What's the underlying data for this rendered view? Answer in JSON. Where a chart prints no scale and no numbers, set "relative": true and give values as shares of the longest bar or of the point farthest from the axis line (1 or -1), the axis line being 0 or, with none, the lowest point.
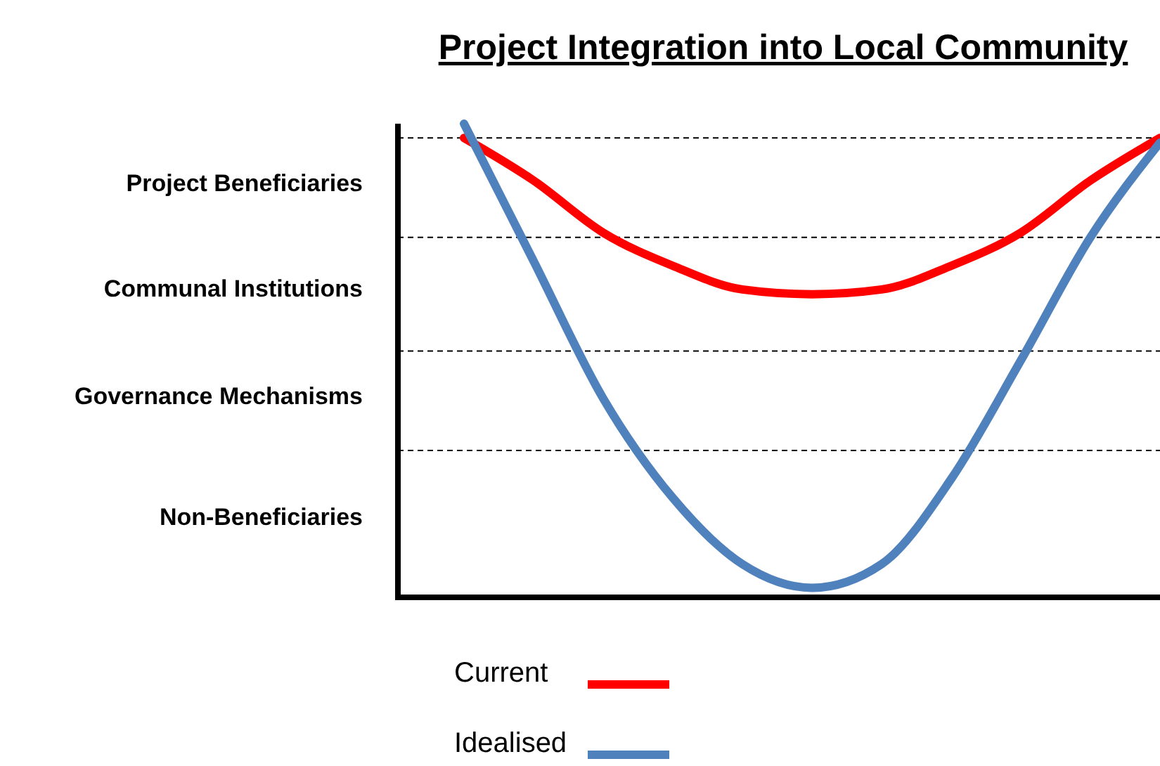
{
  "chart_data": {
    "type": "line",
    "title": "Project Integration into Local Community",
    "categories": [
      null,
      null,
      null,
      null,
      null,
      null,
      null,
      null,
      null,
      null,
      null
    ],
    "relative": true,
    "series": [
      {
        "name": "Current",
        "color": "#ff0000",
        "values": [
          0.97,
          0.88,
          0.77,
          0.7,
          0.65,
          0.64,
          0.65,
          0.7,
          0.77,
          0.88,
          0.97
        ]
      },
      {
        "name": "Idealised",
        "color": "#4f81bd",
        "values": [
          1.0,
          0.71,
          0.42,
          0.21,
          0.07,
          0.02,
          0.07,
          0.25,
          0.5,
          0.76,
          0.96
        ]
      }
    ],
    "ref_lines": [
      {
        "axis": "y",
        "value": 0.31,
        "color": "#000000",
        "line_style": "dashed",
        "label": "Non-Beneficiaries"
      },
      {
        "axis": "y",
        "value": 0.52,
        "color": "#000000",
        "line_style": "dashed",
        "label": "Governance Mechanisms"
      },
      {
        "axis": "y",
        "value": 0.76,
        "color": "#000000",
        "line_style": "dashed",
        "label": "Communal Institutions"
      },
      {
        "axis": "y",
        "value": 0.97,
        "color": "#000000",
        "line_style": "dashed",
        "label": "Project Beneficiaries"
      }
    ],
    "legend": "bottom",
    "line_style": "solid",
    "marker": "none"
  }
}
